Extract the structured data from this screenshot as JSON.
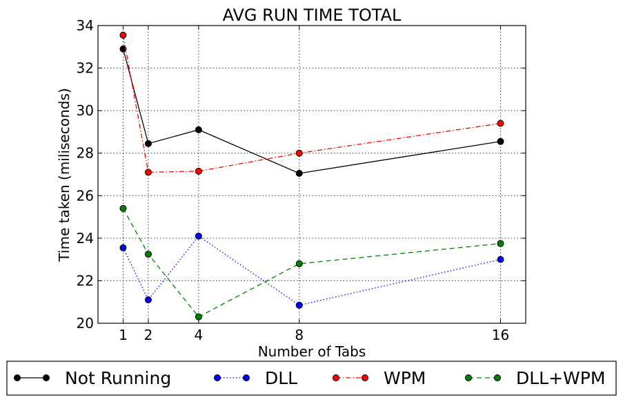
{
  "chart_data": {
    "type": "line",
    "title": "AVG RUN TIME TOTAL",
    "xlabel": "Number of Tabs",
    "ylabel": "Time taken (miliseconds)",
    "x": [
      1,
      2,
      4,
      8,
      16
    ],
    "xticks": [
      "1",
      "2",
      "4",
      "8",
      "16"
    ],
    "xlim": [
      0,
      17
    ],
    "ylim": [
      20,
      34
    ],
    "yticks": [
      "20",
      "22",
      "24",
      "26",
      "28",
      "30",
      "32",
      "34"
    ],
    "grid": true,
    "legend_position": "bottom",
    "series": [
      {
        "name": "Not Running",
        "values": [
          32.9,
          28.45,
          29.1,
          27.05,
          28.55
        ],
        "color": "#000000",
        "style": "solid"
      },
      {
        "name": "DLL",
        "values": [
          23.55,
          21.1,
          24.1,
          20.85,
          23.0
        ],
        "color": "#0000ff",
        "style": "dotted"
      },
      {
        "name": "WPM",
        "values": [
          33.55,
          27.1,
          27.15,
          28.0,
          29.4
        ],
        "color": "#ff0000",
        "style": "dashdot"
      },
      {
        "name": "DLL+WPM",
        "values": [
          25.4,
          23.25,
          20.3,
          22.8,
          23.75
        ],
        "color": "#007f00",
        "style": "dashed"
      }
    ]
  }
}
